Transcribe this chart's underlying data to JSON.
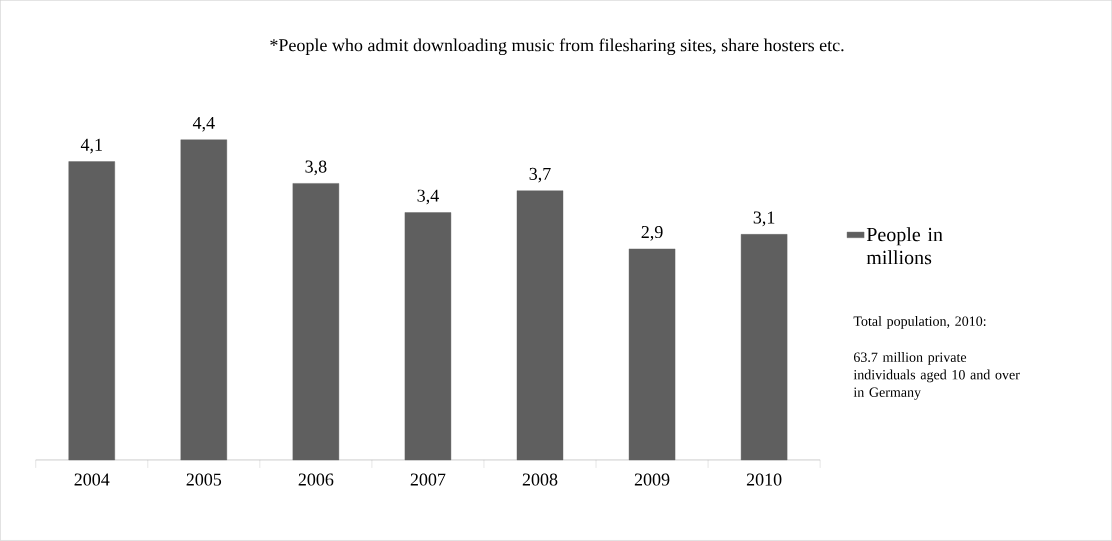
{
  "chart_data": {
    "type": "bar",
    "title": "*People who admit downloading music from filesharing sites, share hosters etc.",
    "categories": [
      "2004",
      "2005",
      "2006",
      "2007",
      "2008",
      "2009",
      "2010"
    ],
    "series": [
      {
        "name": "People in millions",
        "color": "#5f5f5f",
        "values": [
          4.1,
          4.4,
          3.8,
          3.4,
          3.7,
          2.9,
          3.1
        ],
        "value_labels": [
          "4,1",
          "4,4",
          "3,8",
          "3,4",
          "3,7",
          "2,9",
          "3,1"
        ]
      }
    ],
    "legend": "right",
    "annotations": [
      "Total population, 2010:",
      "63.7 million private individuals aged 10 and over in Germany"
    ]
  }
}
